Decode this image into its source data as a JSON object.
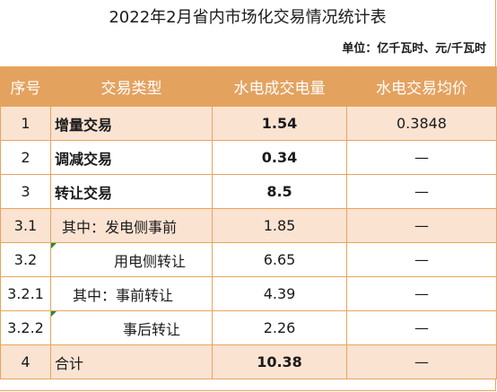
{
  "title": "2022年2月省内市场化交易情况统计表",
  "unit": "单位：亿千瓦时、元/千瓦时",
  "headers": [
    "序号",
    "交易类型",
    "水电成交电量",
    "水电交易均价"
  ],
  "rows": [
    {
      "no": "1",
      "type": "增量交易",
      "volume": "1.54",
      "price": "0.3848"
    },
    {
      "no": "2",
      "type": "调减交易",
      "volume": "0.34",
      "price": "—"
    },
    {
      "no": "3",
      "type": "转让交易",
      "volume": "8.5",
      "price": "—"
    },
    {
      "no": "3.1",
      "type": "其中：发电侧事前",
      "volume": "1.85",
      "price": "—"
    },
    {
      "no": "3.2",
      "type": "用电侧转让",
      "volume": "6.65",
      "price": "—"
    },
    {
      "no": "3.2.1",
      "type": "其中：事前转让",
      "volume": "4.39",
      "price": "—"
    },
    {
      "no": "3.2.2",
      "type": "事后转让",
      "volume": "2.26",
      "price": "—"
    },
    {
      "no": "4",
      "type": "合计",
      "volume": "10.38",
      "price": "—"
    }
  ]
}
